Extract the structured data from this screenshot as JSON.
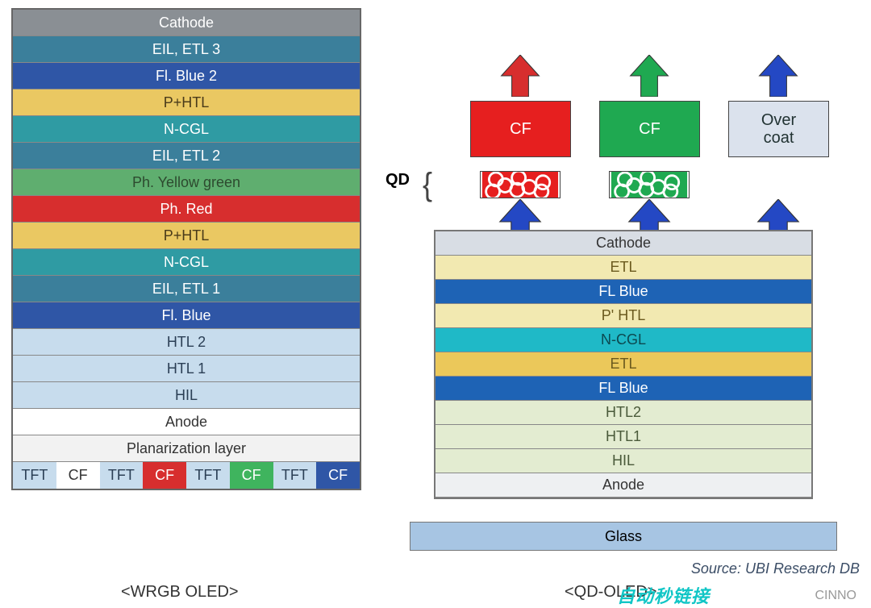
{
  "left_stack": {
    "caption": "<WRGB OLED>",
    "layers": [
      {
        "label": "Cathode",
        "bg": "#8a8f94",
        "fg": "#ffffff"
      },
      {
        "label": "EIL, ETL 3",
        "bg": "#3b7f9b",
        "fg": "#ffffff"
      },
      {
        "label": "Fl. Blue 2",
        "bg": "#2f56a6",
        "fg": "#ffffff"
      },
      {
        "label": "P+HTL",
        "bg": "#eac862",
        "fg": "#4a3b1a"
      },
      {
        "label": "N-CGL",
        "bg": "#2f9ba3",
        "fg": "#ffffff"
      },
      {
        "label": "EIL, ETL 2",
        "bg": "#3b7f9b",
        "fg": "#ffffff"
      },
      {
        "label": "Ph. Yellow green",
        "bg": "#5fae6f",
        "fg": "#2d4a2f"
      },
      {
        "label": "Ph. Red",
        "bg": "#d72e2e",
        "fg": "#ffffff"
      },
      {
        "label": "P+HTL",
        "bg": "#eac862",
        "fg": "#4a3b1a"
      },
      {
        "label": "N-CGL",
        "bg": "#2f9ba3",
        "fg": "#ffffff"
      },
      {
        "label": "EIL, ETL 1",
        "bg": "#3b7f9b",
        "fg": "#ffffff"
      },
      {
        "label": "Fl. Blue",
        "bg": "#2f56a6",
        "fg": "#ffffff"
      },
      {
        "label": "HTL 2",
        "bg": "#c7dced",
        "fg": "#2b3f55"
      },
      {
        "label": "HTL 1",
        "bg": "#c7dced",
        "fg": "#2b3f55"
      },
      {
        "label": "HIL",
        "bg": "#c7dced",
        "fg": "#2b3f55"
      },
      {
        "label": "Anode",
        "bg": "#ffffff",
        "fg": "#333333"
      },
      {
        "label": "Planarization layer",
        "bg": "#f2f2f2",
        "fg": "#333333"
      }
    ],
    "tft_row": [
      {
        "label": "TFT",
        "bg": "#c7dced",
        "fg": "#2b3f55"
      },
      {
        "label": "CF",
        "bg": "#ffffff",
        "fg": "#333333"
      },
      {
        "label": "TFT",
        "bg": "#c7dced",
        "fg": "#2b3f55"
      },
      {
        "label": "CF",
        "bg": "#d72e2e",
        "fg": "#ffffff"
      },
      {
        "label": "TFT",
        "bg": "#c7dced",
        "fg": "#2b3f55"
      },
      {
        "label": "CF",
        "bg": "#3fb45e",
        "fg": "#ffffff"
      },
      {
        "label": "TFT",
        "bg": "#c7dced",
        "fg": "#2b3f55"
      },
      {
        "label": "CF",
        "bg": "#2f56a6",
        "fg": "#ffffff"
      }
    ]
  },
  "right_stack": {
    "caption": "<QD-OLED>",
    "qd_label": "QD",
    "source_label": "Source: UBI Research DB",
    "glass_label": "Glass",
    "glass_bg": "#a7c5e3",
    "layers": [
      {
        "label": "Cathode",
        "bg": "#d8dde4",
        "fg": "#333333"
      },
      {
        "label": "ETL",
        "bg": "#f2e9b1",
        "fg": "#6b5a1e"
      },
      {
        "label": "FL Blue",
        "bg": "#1e63b5",
        "fg": "#ffffff"
      },
      {
        "label": "P' HTL",
        "bg": "#f2e9b1",
        "fg": "#6b5a1e"
      },
      {
        "label": "N-CGL",
        "bg": "#1fb9c7",
        "fg": "#0c4950"
      },
      {
        "label": "ETL",
        "bg": "#ebc85a",
        "fg": "#6b5a1e"
      },
      {
        "label": "FL Blue",
        "bg": "#1e63b5",
        "fg": "#ffffff"
      },
      {
        "label": "HTL2",
        "bg": "#e3ecd1",
        "fg": "#4a5a3a"
      },
      {
        "label": "HTL1",
        "bg": "#e3ecd1",
        "fg": "#4a5a3a"
      },
      {
        "label": "HIL",
        "bg": "#e3ecd1",
        "fg": "#4a5a3a"
      },
      {
        "label": "Anode",
        "bg": "#eef0f2",
        "fg": "#333333"
      }
    ],
    "top": {
      "arrow_color_top": [
        "#d72e2e",
        "#1fa951",
        "#2448c4"
      ],
      "cf": [
        {
          "label": "CF",
          "bg": "#e61f1f"
        },
        {
          "label": "CF",
          "bg": "#1fa951"
        }
      ],
      "overcoat_label": "Over coat",
      "qd_boxes": [
        {
          "fill": "#e61f1f",
          "dots": "#ffffff"
        },
        {
          "fill": "#1fa951",
          "dots": "#ffffff"
        }
      ],
      "arrow_color_mid": "#2448c4"
    }
  },
  "watermark": "CINNO",
  "watermark2": "自动秒链接"
}
